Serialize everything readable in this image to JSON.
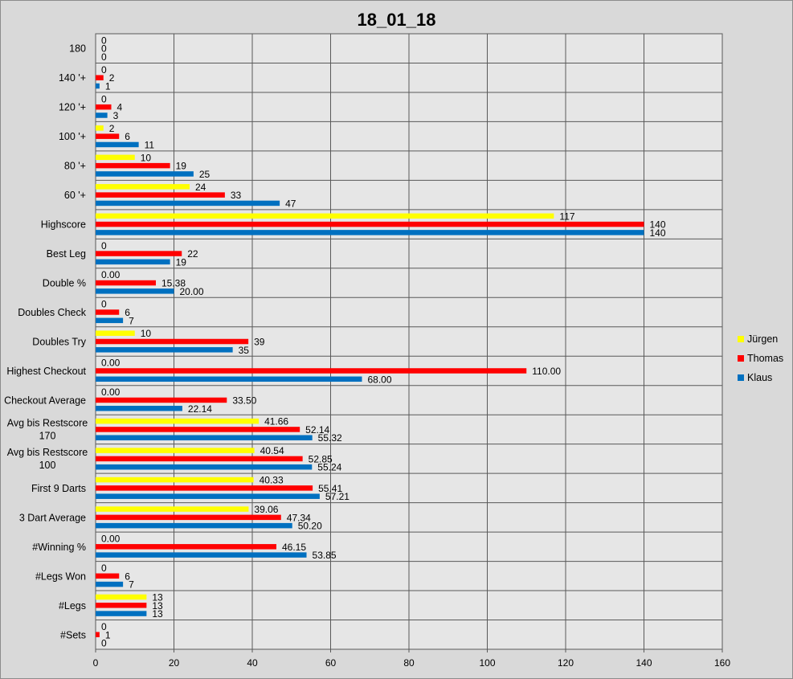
{
  "chart_data": {
    "type": "bar",
    "orientation": "horizontal",
    "title": "18_01_18",
    "xlim": [
      0,
      160
    ],
    "xticks": [
      0,
      20,
      40,
      60,
      80,
      100,
      120,
      140,
      160
    ],
    "grid": true,
    "legend_position": "right",
    "categories": [
      "180",
      "140 '+",
      "120 '+",
      "100 '+",
      "80 '+",
      "60 '+",
      "Highscore",
      "Best Leg",
      "Double %",
      "Doubles Check",
      "Doubles Try",
      "Highest Checkout",
      "Checkout Average",
      "Avg bis Restscore 170",
      "Avg bis Restscore 100",
      "First 9 Darts",
      "3 Dart Average",
      "#Winning %",
      "#Legs Won",
      "#Legs",
      "#Sets"
    ],
    "series": [
      {
        "name": "Jürgen",
        "color": "#ffff00",
        "values": [
          0,
          0,
          0,
          2,
          10,
          24,
          117,
          0,
          0,
          0,
          10,
          0,
          0,
          41.66,
          40.54,
          40.33,
          39.06,
          0,
          0,
          13,
          0
        ],
        "labels": [
          "0",
          "0",
          "0",
          "2",
          "10",
          "24",
          "117",
          "0",
          "0.00",
          "0",
          "10",
          "0.00",
          "0.00",
          "41.66",
          "40.54",
          "40.33",
          "39.06",
          "0.00",
          "0",
          "13",
          "0"
        ]
      },
      {
        "name": "Thomas",
        "color": "#ff0000",
        "values": [
          0,
          2,
          4,
          6,
          19,
          33,
          140,
          22,
          15.38,
          6,
          39,
          110,
          33.5,
          52.14,
          52.85,
          55.41,
          47.34,
          46.15,
          6,
          13,
          1
        ],
        "labels": [
          "0",
          "2",
          "4",
          "6",
          "19",
          "33",
          "140",
          "22",
          "15.38",
          "6",
          "39",
          "110.00",
          "33.50",
          "52.14",
          "52.85",
          "55.41",
          "47.34",
          "46.15",
          "6",
          "13",
          "1"
        ]
      },
      {
        "name": "Klaus",
        "color": "#0070c0",
        "values": [
          0,
          1,
          3,
          11,
          25,
          47,
          140,
          19,
          20,
          7,
          35,
          68,
          22.14,
          55.32,
          55.24,
          57.21,
          50.2,
          53.85,
          7,
          13,
          0
        ],
        "labels": [
          "0",
          "1",
          "3",
          "11",
          "25",
          "47",
          "140",
          "19",
          "20.00",
          "7",
          "35",
          "68.00",
          "22.14",
          "55.32",
          "55.24",
          "57.21",
          "50.20",
          "53.85",
          "7",
          "13",
          "0"
        ]
      }
    ]
  }
}
